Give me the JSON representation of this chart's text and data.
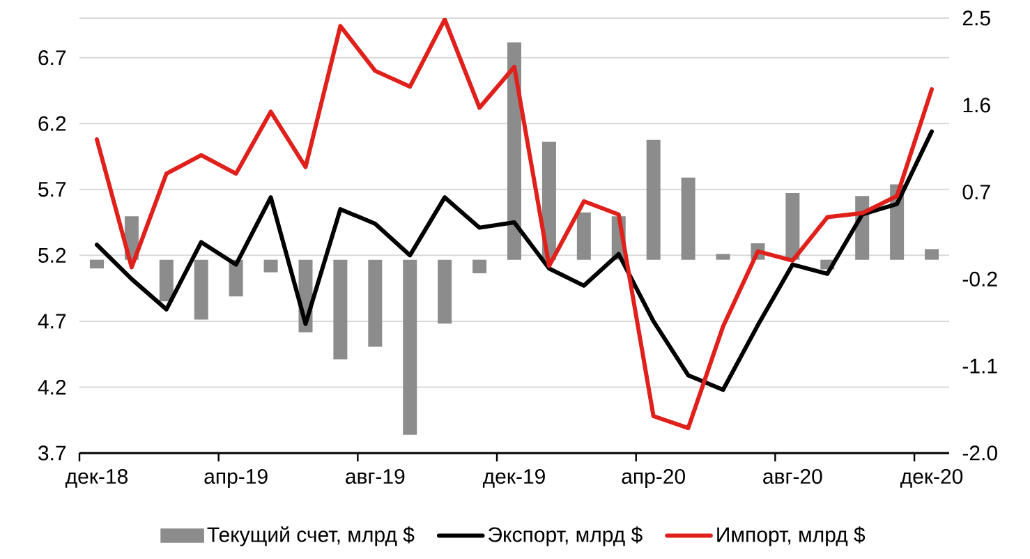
{
  "chart_data": {
    "type": "line",
    "categories": [
      "дек-18",
      null,
      null,
      null,
      "апр-19",
      null,
      null,
      null,
      "авг-19",
      null,
      null,
      null,
      "дек-19",
      null,
      null,
      null,
      "апр-20",
      null,
      null,
      null,
      "авг-20",
      null,
      null,
      null,
      "дек-20"
    ],
    "series": [
      {
        "name": "Текущий счет, млрд $",
        "type": "bar",
        "axis": "y2",
        "color": "#8c8c8c",
        "values": [
          -0.09,
          0.45,
          -0.43,
          -0.62,
          -0.38,
          -0.13,
          -0.75,
          -1.03,
          -0.9,
          -1.81,
          -0.66,
          -0.14,
          2.25,
          1.22,
          0.49,
          0.45,
          1.24,
          0.85,
          0.06,
          0.17,
          0.69,
          -0.1,
          0.66,
          0.78,
          0.11
        ]
      },
      {
        "name": "Экспорт, млрд $",
        "color": "#000000",
        "values": [
          5.28,
          5.02,
          4.79,
          5.3,
          5.13,
          5.64,
          4.68,
          5.55,
          5.44,
          5.2,
          5.64,
          5.41,
          5.45,
          5.1,
          4.97,
          5.21,
          4.7,
          4.29,
          4.18,
          4.67,
          5.13,
          5.06,
          5.51,
          5.59,
          6.14
        ]
      },
      {
        "name": "Импорт, млрд $",
        "color": "#e0201b",
        "values": [
          6.08,
          5.11,
          5.82,
          5.96,
          5.82,
          6.29,
          5.87,
          6.94,
          6.6,
          6.48,
          6.99,
          6.32,
          6.63,
          5.12,
          5.61,
          5.51,
          3.98,
          3.89,
          4.66,
          5.23,
          5.16,
          5.49,
          5.52,
          5.65,
          6.46
        ]
      }
    ],
    "ylim": [
      3.7,
      7.0
    ],
    "yticks": [
      3.7,
      4.2,
      4.7,
      5.2,
      5.7,
      6.2,
      6.7,
      {
        "value": 7.0,
        "label": null
      }
    ],
    "y2lim": [
      -2.0,
      2.5
    ],
    "y2ticks": [
      {
        "value": -2.0,
        "label": "-2.0"
      },
      -1.1,
      -0.2,
      0.7,
      1.6,
      2.5
    ],
    "grid": "y",
    "legend": "bottom"
  }
}
